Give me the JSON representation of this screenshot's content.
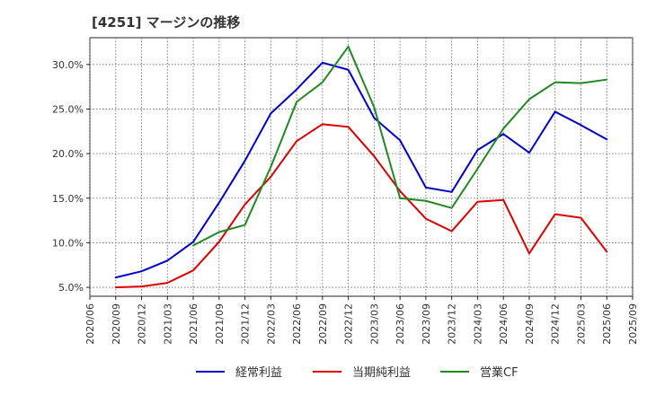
{
  "chart_data": {
    "type": "line",
    "title": "[4251]  マージンの推移",
    "xlabel": "",
    "ylabel": "",
    "ylim": [
      4.0,
      33.0
    ],
    "yticks": [
      5.0,
      10.0,
      15.0,
      20.0,
      25.0,
      30.0
    ],
    "ytick_labels": [
      "5.0%",
      "10.0%",
      "15.0%",
      "20.0%",
      "25.0%",
      "30.0%"
    ],
    "grid": true,
    "legend_position": "bottom",
    "categories": [
      "2020/06",
      "2020/09",
      "2020/12",
      "2021/03",
      "2021/06",
      "2021/09",
      "2021/12",
      "2022/03",
      "2022/06",
      "2022/09",
      "2022/12",
      "2023/03",
      "2023/06",
      "2023/09",
      "2023/12",
      "2024/03",
      "2024/06",
      "2024/09",
      "2024/12",
      "2025/03",
      "2025/06",
      "2025/09"
    ],
    "series": [
      {
        "name": "経常利益",
        "color": "#0000cc",
        "values": [
          null,
          6.1,
          6.8,
          8.0,
          10.1,
          14.5,
          19.2,
          24.5,
          27.2,
          30.2,
          29.4,
          24.0,
          21.5,
          16.2,
          15.7,
          20.4,
          22.2,
          20.1,
          24.7,
          23.2,
          21.6,
          null
        ]
      },
      {
        "name": "当期純利益",
        "color": "#dd0000",
        "values": [
          null,
          5.0,
          5.1,
          5.5,
          6.9,
          10.1,
          14.3,
          17.4,
          21.4,
          23.3,
          23.0,
          19.7,
          15.8,
          12.7,
          11.3,
          14.6,
          14.8,
          8.8,
          13.2,
          12.8,
          9.0,
          null
        ]
      },
      {
        "name": "営業CF",
        "color": "#228822",
        "values": [
          null,
          null,
          null,
          null,
          9.7,
          11.2,
          12.0,
          18.5,
          25.8,
          28.0,
          32.0,
          25.2,
          15.0,
          14.7,
          13.9,
          18.3,
          22.8,
          26.1,
          28.0,
          27.9,
          28.3,
          null
        ]
      }
    ]
  }
}
